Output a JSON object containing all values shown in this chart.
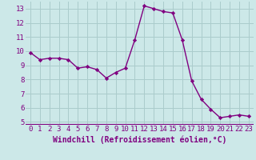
{
  "x": [
    0,
    1,
    2,
    3,
    4,
    5,
    6,
    7,
    8,
    9,
    10,
    11,
    12,
    13,
    14,
    15,
    16,
    17,
    18,
    19,
    20,
    21,
    22,
    23
  ],
  "y": [
    9.9,
    9.4,
    9.5,
    9.5,
    9.4,
    8.8,
    8.9,
    8.7,
    8.1,
    8.5,
    8.8,
    10.8,
    13.2,
    13.0,
    12.8,
    12.7,
    10.8,
    7.9,
    6.6,
    5.9,
    5.3,
    5.4,
    5.5,
    5.4
  ],
  "line_color": "#800080",
  "marker": "D",
  "marker_size": 2.2,
  "linewidth": 1.0,
  "xlabel": "Windchill (Refroidissement éolien,°C)",
  "xlabel_fontsize": 7,
  "ylim": [
    4.8,
    13.5
  ],
  "yticks": [
    5,
    6,
    7,
    8,
    9,
    10,
    11,
    12,
    13
  ],
  "xticks": [
    0,
    1,
    2,
    3,
    4,
    5,
    6,
    7,
    8,
    9,
    10,
    11,
    12,
    13,
    14,
    15,
    16,
    17,
    18,
    19,
    20,
    21,
    22,
    23
  ],
  "background_color": "#cce8e8",
  "grid_color": "#aacccc",
  "tick_fontsize": 6.5,
  "separator_color": "#800080",
  "xlim": [
    -0.5,
    23.5
  ]
}
